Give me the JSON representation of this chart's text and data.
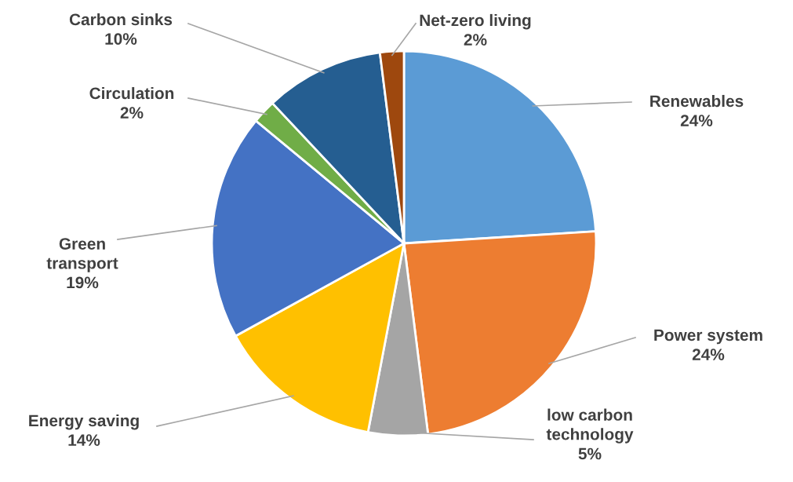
{
  "chart_data": {
    "type": "pie",
    "categories": [
      "Renewables",
      "Power system",
      "low carbon technology",
      "Energy saving",
      "Green transport",
      "Circulation",
      "Carbon sinks",
      "Net-zero living"
    ],
    "values": [
      24,
      24,
      5,
      14,
      19,
      2,
      10,
      2
    ],
    "value_labels": [
      "24%",
      "24%",
      "5%",
      "14%",
      "19%",
      "2%",
      "10%",
      "2%"
    ],
    "colors": [
      "#5b9bd5",
      "#ed7d31",
      "#a5a5a5",
      "#ffc000",
      "#4472c4",
      "#70ad47",
      "#255e91",
      "#9e480e"
    ],
    "legend": false
  }
}
